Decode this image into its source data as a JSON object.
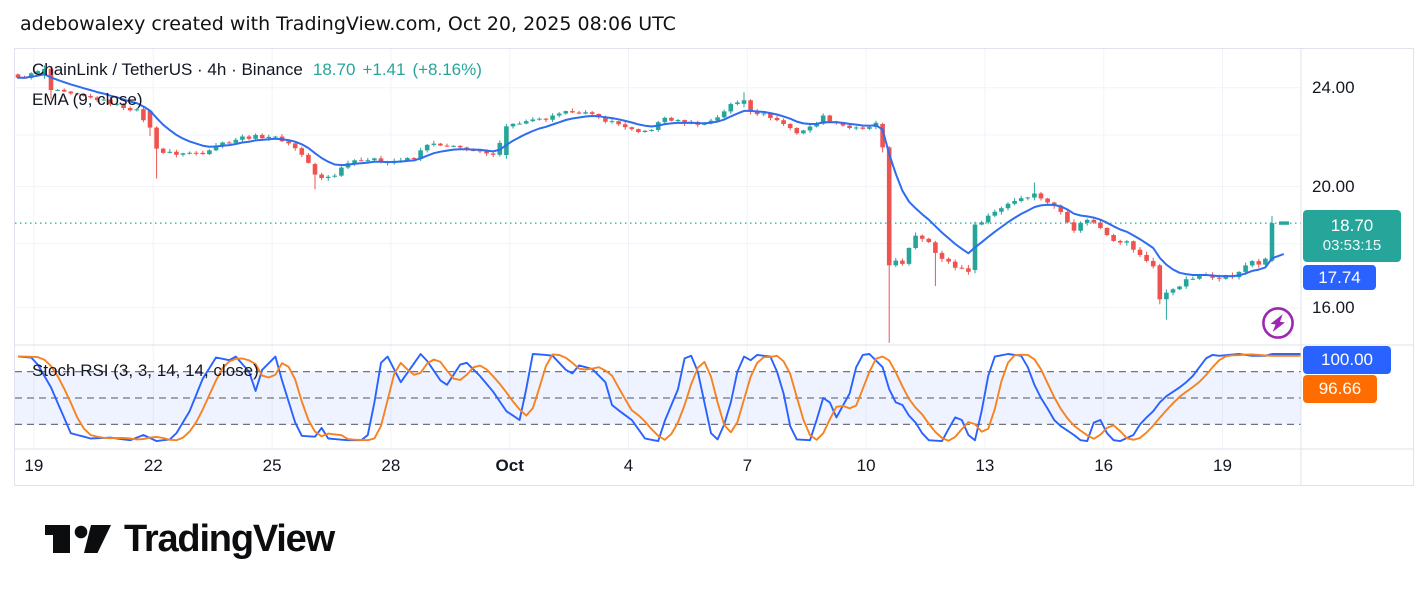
{
  "attribution": "adebowalexy created with TradingView.com, Oct 20, 2025 08:06 UTC",
  "header": {
    "title": "ChainLink / TetherUS · 4h · Binance",
    "price": "18.70",
    "change": "+1.41",
    "change_pct": "(+8.16%)",
    "indicator_label": "EMA (9, close)"
  },
  "sub_pane": {
    "label": "Stoch RSI (3, 3, 14, 14, close)",
    "k_badge": "100.00",
    "d_badge": "96.66"
  },
  "price_axis": {
    "ticks": [
      {
        "label": "24.00",
        "price": 24
      },
      {
        "label": "20.00",
        "price": 20
      },
      {
        "label": "16.00",
        "price": 16
      }
    ],
    "last_price_badge": {
      "text": "18.70",
      "countdown": "03:53:15"
    },
    "ema_badge": {
      "text": "17.74"
    }
  },
  "time_axis": {
    "ticks": [
      {
        "label": "19",
        "i": 2.4,
        "bold": false
      },
      {
        "label": "22",
        "i": 20.5,
        "bold": false
      },
      {
        "label": "25",
        "i": 38.5,
        "bold": false
      },
      {
        "label": "28",
        "i": 56.5,
        "bold": false
      },
      {
        "label": "Oct",
        "i": 74.5,
        "bold": true
      },
      {
        "label": "4",
        "i": 92.5,
        "bold": false
      },
      {
        "label": "7",
        "i": 110.5,
        "bold": false
      },
      {
        "label": "10",
        "i": 128.5,
        "bold": false
      },
      {
        "label": "13",
        "i": 146.5,
        "bold": false
      },
      {
        "label": "16",
        "i": 164.5,
        "bold": false
      },
      {
        "label": "19",
        "i": 182.5,
        "bold": false
      }
    ]
  },
  "colors": {
    "up": "#26a69a",
    "down": "#ef5350",
    "ema_line": "#2e6cf0",
    "k_line": "#2962ff",
    "d_line": "#f7821f",
    "badge_blue": "#2962ff",
    "badge_orange": "#ff6d00",
    "badge_teal": "#26a69a",
    "band_fill": "rgba(41,98,255,0.08)",
    "grid": "#f0f3fa",
    "separator": "#e0e3eb",
    "dashed_level": "#6f7480",
    "purple": "#9c27b0",
    "text": "#131722"
  },
  "chart_data": {
    "type": "candlestick",
    "title": "ChainLink / TetherUS · 4h · Binance",
    "symbol": "ChainLink / TetherUS",
    "interval": "4h",
    "exchange": "Binance",
    "last_price": 18.7,
    "change": 1.41,
    "change_pct": 8.16,
    "scale": "log",
    "y_ticks": [
      24.0,
      20.0,
      16.0
    ],
    "x_tick_labels": [
      "19",
      "22",
      "25",
      "28",
      "Oct",
      "4",
      "7",
      "10",
      "13",
      "16",
      "19"
    ],
    "num_candles": 191,
    "close_waypoints": [
      [
        0,
        24.4
      ],
      [
        2,
        24.6
      ],
      [
        4,
        24.85
      ],
      [
        5,
        23.9
      ],
      [
        8,
        23.7
      ],
      [
        12,
        23.5
      ],
      [
        18,
        23.0
      ],
      [
        20,
        22.3
      ],
      [
        21,
        21.45
      ],
      [
        22,
        21.3
      ],
      [
        24,
        21.25
      ],
      [
        28,
        21.3
      ],
      [
        30,
        21.6
      ],
      [
        32,
        21.75
      ],
      [
        34,
        21.9
      ],
      [
        38,
        21.95
      ],
      [
        40,
        21.8
      ],
      [
        42,
        21.5
      ],
      [
        44,
        20.9
      ],
      [
        45,
        20.45
      ],
      [
        46,
        20.3
      ],
      [
        48,
        20.45
      ],
      [
        50,
        20.95
      ],
      [
        52,
        21.05
      ],
      [
        56,
        20.95
      ],
      [
        60,
        21.05
      ],
      [
        62,
        21.65
      ],
      [
        64,
        21.55
      ],
      [
        68,
        21.45
      ],
      [
        70,
        21.3
      ],
      [
        72,
        21.15
      ],
      [
        74,
        22.35
      ],
      [
        76,
        22.5
      ],
      [
        80,
        22.65
      ],
      [
        84,
        23.0
      ],
      [
        86,
        22.9
      ],
      [
        88,
        22.7
      ],
      [
        92,
        22.35
      ],
      [
        94,
        22.05
      ],
      [
        96,
        22.25
      ],
      [
        98,
        22.7
      ],
      [
        100,
        22.55
      ],
      [
        104,
        22.45
      ],
      [
        106,
        22.75
      ],
      [
        108,
        23.25
      ],
      [
        110,
        23.45
      ],
      [
        111,
        23.0
      ],
      [
        114,
        22.75
      ],
      [
        116,
        22.45
      ],
      [
        118,
        22.1
      ],
      [
        120,
        22.3
      ],
      [
        122,
        22.75
      ],
      [
        124,
        22.5
      ],
      [
        126,
        22.3
      ],
      [
        128,
        22.2
      ],
      [
        130,
        22.45
      ],
      [
        131,
        21.5
      ],
      [
        132,
        17.3
      ],
      [
        133,
        17.5
      ],
      [
        134,
        17.3
      ],
      [
        136,
        18.3
      ],
      [
        138,
        18.1
      ],
      [
        139,
        17.7
      ],
      [
        140,
        17.5
      ],
      [
        142,
        17.25
      ],
      [
        144,
        17.15
      ],
      [
        145,
        18.65
      ],
      [
        146,
        18.8
      ],
      [
        148,
        19.1
      ],
      [
        150,
        19.4
      ],
      [
        152,
        19.6
      ],
      [
        154,
        19.75
      ],
      [
        156,
        19.45
      ],
      [
        158,
        19.1
      ],
      [
        160,
        18.5
      ],
      [
        162,
        18.85
      ],
      [
        164,
        18.55
      ],
      [
        166,
        18.15
      ],
      [
        168,
        18.05
      ],
      [
        170,
        17.6
      ],
      [
        171,
        17.45
      ],
      [
        172,
        17.3
      ],
      [
        173,
        16.25
      ],
      [
        174,
        16.45
      ],
      [
        176,
        16.7
      ],
      [
        178,
        16.9
      ],
      [
        180,
        17.0
      ],
      [
        182,
        16.95
      ],
      [
        184,
        16.95
      ],
      [
        185,
        17.05
      ],
      [
        186,
        17.3
      ],
      [
        187,
        17.45
      ],
      [
        188,
        17.35
      ],
      [
        189,
        17.45
      ],
      [
        190,
        18.7
      ]
    ],
    "candle_overrides": {
      "4": [
        24.55,
        25.0,
        24.4,
        24.85
      ],
      "5": [
        24.85,
        24.95,
        23.5,
        23.9
      ],
      "20": [
        23.0,
        23.05,
        21.95,
        22.3
      ],
      "21": [
        22.3,
        22.35,
        20.3,
        21.45
      ],
      "45": [
        20.85,
        20.9,
        19.9,
        20.45
      ],
      "74": [
        21.2,
        22.45,
        21.05,
        22.35
      ],
      "110": [
        23.3,
        23.8,
        23.15,
        23.45
      ],
      "111": [
        23.45,
        23.5,
        22.85,
        23.0
      ],
      "131": [
        22.45,
        22.5,
        21.3,
        21.5
      ],
      "132": [
        21.5,
        21.55,
        15.0,
        17.3
      ],
      "139": [
        18.05,
        18.1,
        16.65,
        17.7
      ],
      "145": [
        17.15,
        18.75,
        17.05,
        18.65
      ],
      "154": [
        19.6,
        20.15,
        19.5,
        19.75
      ],
      "173": [
        17.3,
        17.35,
        16.1,
        16.25
      ],
      "174": [
        16.25,
        16.55,
        15.65,
        16.45
      ],
      "190": [
        17.45,
        18.95,
        17.4,
        18.7
      ]
    },
    "overlays": [
      {
        "type": "ema",
        "length": 9,
        "source": "close",
        "last_value": 17.74
      }
    ],
    "indicator": {
      "type": "stoch_rsi",
      "label": "Stoch RSI (3, 3, 14, 14, close)",
      "params": [
        3,
        3,
        14,
        14,
        "close"
      ],
      "range": [
        0,
        100
      ],
      "levels": [
        80,
        50,
        20
      ],
      "k_last": 100.0,
      "d_last": 96.66,
      "k_waypoints": [
        [
          0,
          97
        ],
        [
          2,
          96
        ],
        [
          3,
          88
        ],
        [
          5,
          62
        ],
        [
          8,
          10
        ],
        [
          11,
          4
        ],
        [
          14,
          5
        ],
        [
          17,
          2
        ],
        [
          19,
          8
        ],
        [
          21,
          1
        ],
        [
          23,
          3
        ],
        [
          24,
          10
        ],
        [
          26,
          35
        ],
        [
          28,
          72
        ],
        [
          30,
          96
        ],
        [
          32,
          93
        ],
        [
          33,
          97
        ],
        [
          35,
          80
        ],
        [
          36,
          58
        ],
        [
          37,
          82
        ],
        [
          39,
          97
        ],
        [
          40,
          70
        ],
        [
          42,
          22
        ],
        [
          43,
          7
        ],
        [
          45,
          6
        ],
        [
          46,
          16
        ],
        [
          47,
          4
        ],
        [
          50,
          2
        ],
        [
          52,
          2
        ],
        [
          53,
          8
        ],
        [
          54,
          45
        ],
        [
          55,
          90
        ],
        [
          56,
          97
        ],
        [
          58,
          68
        ],
        [
          61,
          100
        ],
        [
          62,
          92
        ],
        [
          64,
          70
        ],
        [
          65,
          65
        ],
        [
          67,
          88
        ],
        [
          68,
          90
        ],
        [
          70,
          75
        ],
        [
          72,
          57
        ],
        [
          74,
          35
        ],
        [
          76,
          25
        ],
        [
          77,
          60
        ],
        [
          78,
          100
        ],
        [
          80,
          99
        ],
        [
          81,
          98
        ],
        [
          83,
          82
        ],
        [
          84,
          78
        ],
        [
          85,
          87
        ],
        [
          87,
          83
        ],
        [
          89,
          68
        ],
        [
          90,
          42
        ],
        [
          91,
          36
        ],
        [
          93,
          25
        ],
        [
          95,
          4
        ],
        [
          97,
          1
        ],
        [
          98,
          24
        ],
        [
          100,
          60
        ],
        [
          101,
          95
        ],
        [
          102,
          98
        ],
        [
          103,
          80
        ],
        [
          105,
          10
        ],
        [
          106,
          3
        ],
        [
          107,
          20
        ],
        [
          108,
          45
        ],
        [
          109,
          80
        ],
        [
          110,
          97
        ],
        [
          111,
          93
        ],
        [
          112,
          99
        ],
        [
          114,
          97
        ],
        [
          115,
          80
        ],
        [
          116,
          55
        ],
        [
          117,
          18
        ],
        [
          118,
          3
        ],
        [
          120,
          2
        ],
        [
          121,
          25
        ],
        [
          122,
          50
        ],
        [
          123,
          45
        ],
        [
          124,
          28
        ],
        [
          126,
          55
        ],
        [
          127,
          85
        ],
        [
          128,
          99
        ],
        [
          129,
          100
        ],
        [
          131,
          85
        ],
        [
          132,
          60
        ],
        [
          133,
          45
        ],
        [
          134,
          42
        ],
        [
          135,
          30
        ],
        [
          136,
          22
        ],
        [
          137,
          10
        ],
        [
          138,
          2
        ],
        [
          140,
          1
        ],
        [
          141,
          15
        ],
        [
          142,
          28
        ],
        [
          143,
          25
        ],
        [
          144,
          8
        ],
        [
          145,
          2
        ],
        [
          146,
          35
        ],
        [
          147,
          75
        ],
        [
          148,
          97
        ],
        [
          150,
          100
        ],
        [
          152,
          98
        ],
        [
          153,
          85
        ],
        [
          154,
          65
        ],
        [
          155,
          50
        ],
        [
          156,
          38
        ],
        [
          157,
          25
        ],
        [
          158,
          18
        ],
        [
          160,
          8
        ],
        [
          161,
          2
        ],
        [
          162,
          1
        ],
        [
          163,
          22
        ],
        [
          164,
          25
        ],
        [
          165,
          10
        ],
        [
          166,
          2
        ],
        [
          167,
          1
        ],
        [
          169,
          8
        ],
        [
          170,
          20
        ],
        [
          171,
          28
        ],
        [
          172,
          35
        ],
        [
          173,
          45
        ],
        [
          174,
          52
        ],
        [
          176,
          62
        ],
        [
          177,
          68
        ],
        [
          178,
          75
        ],
        [
          179,
          85
        ],
        [
          180,
          95
        ],
        [
          181,
          99
        ],
        [
          182,
          98
        ],
        [
          185,
          100
        ],
        [
          187,
          98
        ],
        [
          189,
          98
        ],
        [
          190,
          100
        ]
      ]
    }
  },
  "logo": {
    "text": "TradingView"
  }
}
